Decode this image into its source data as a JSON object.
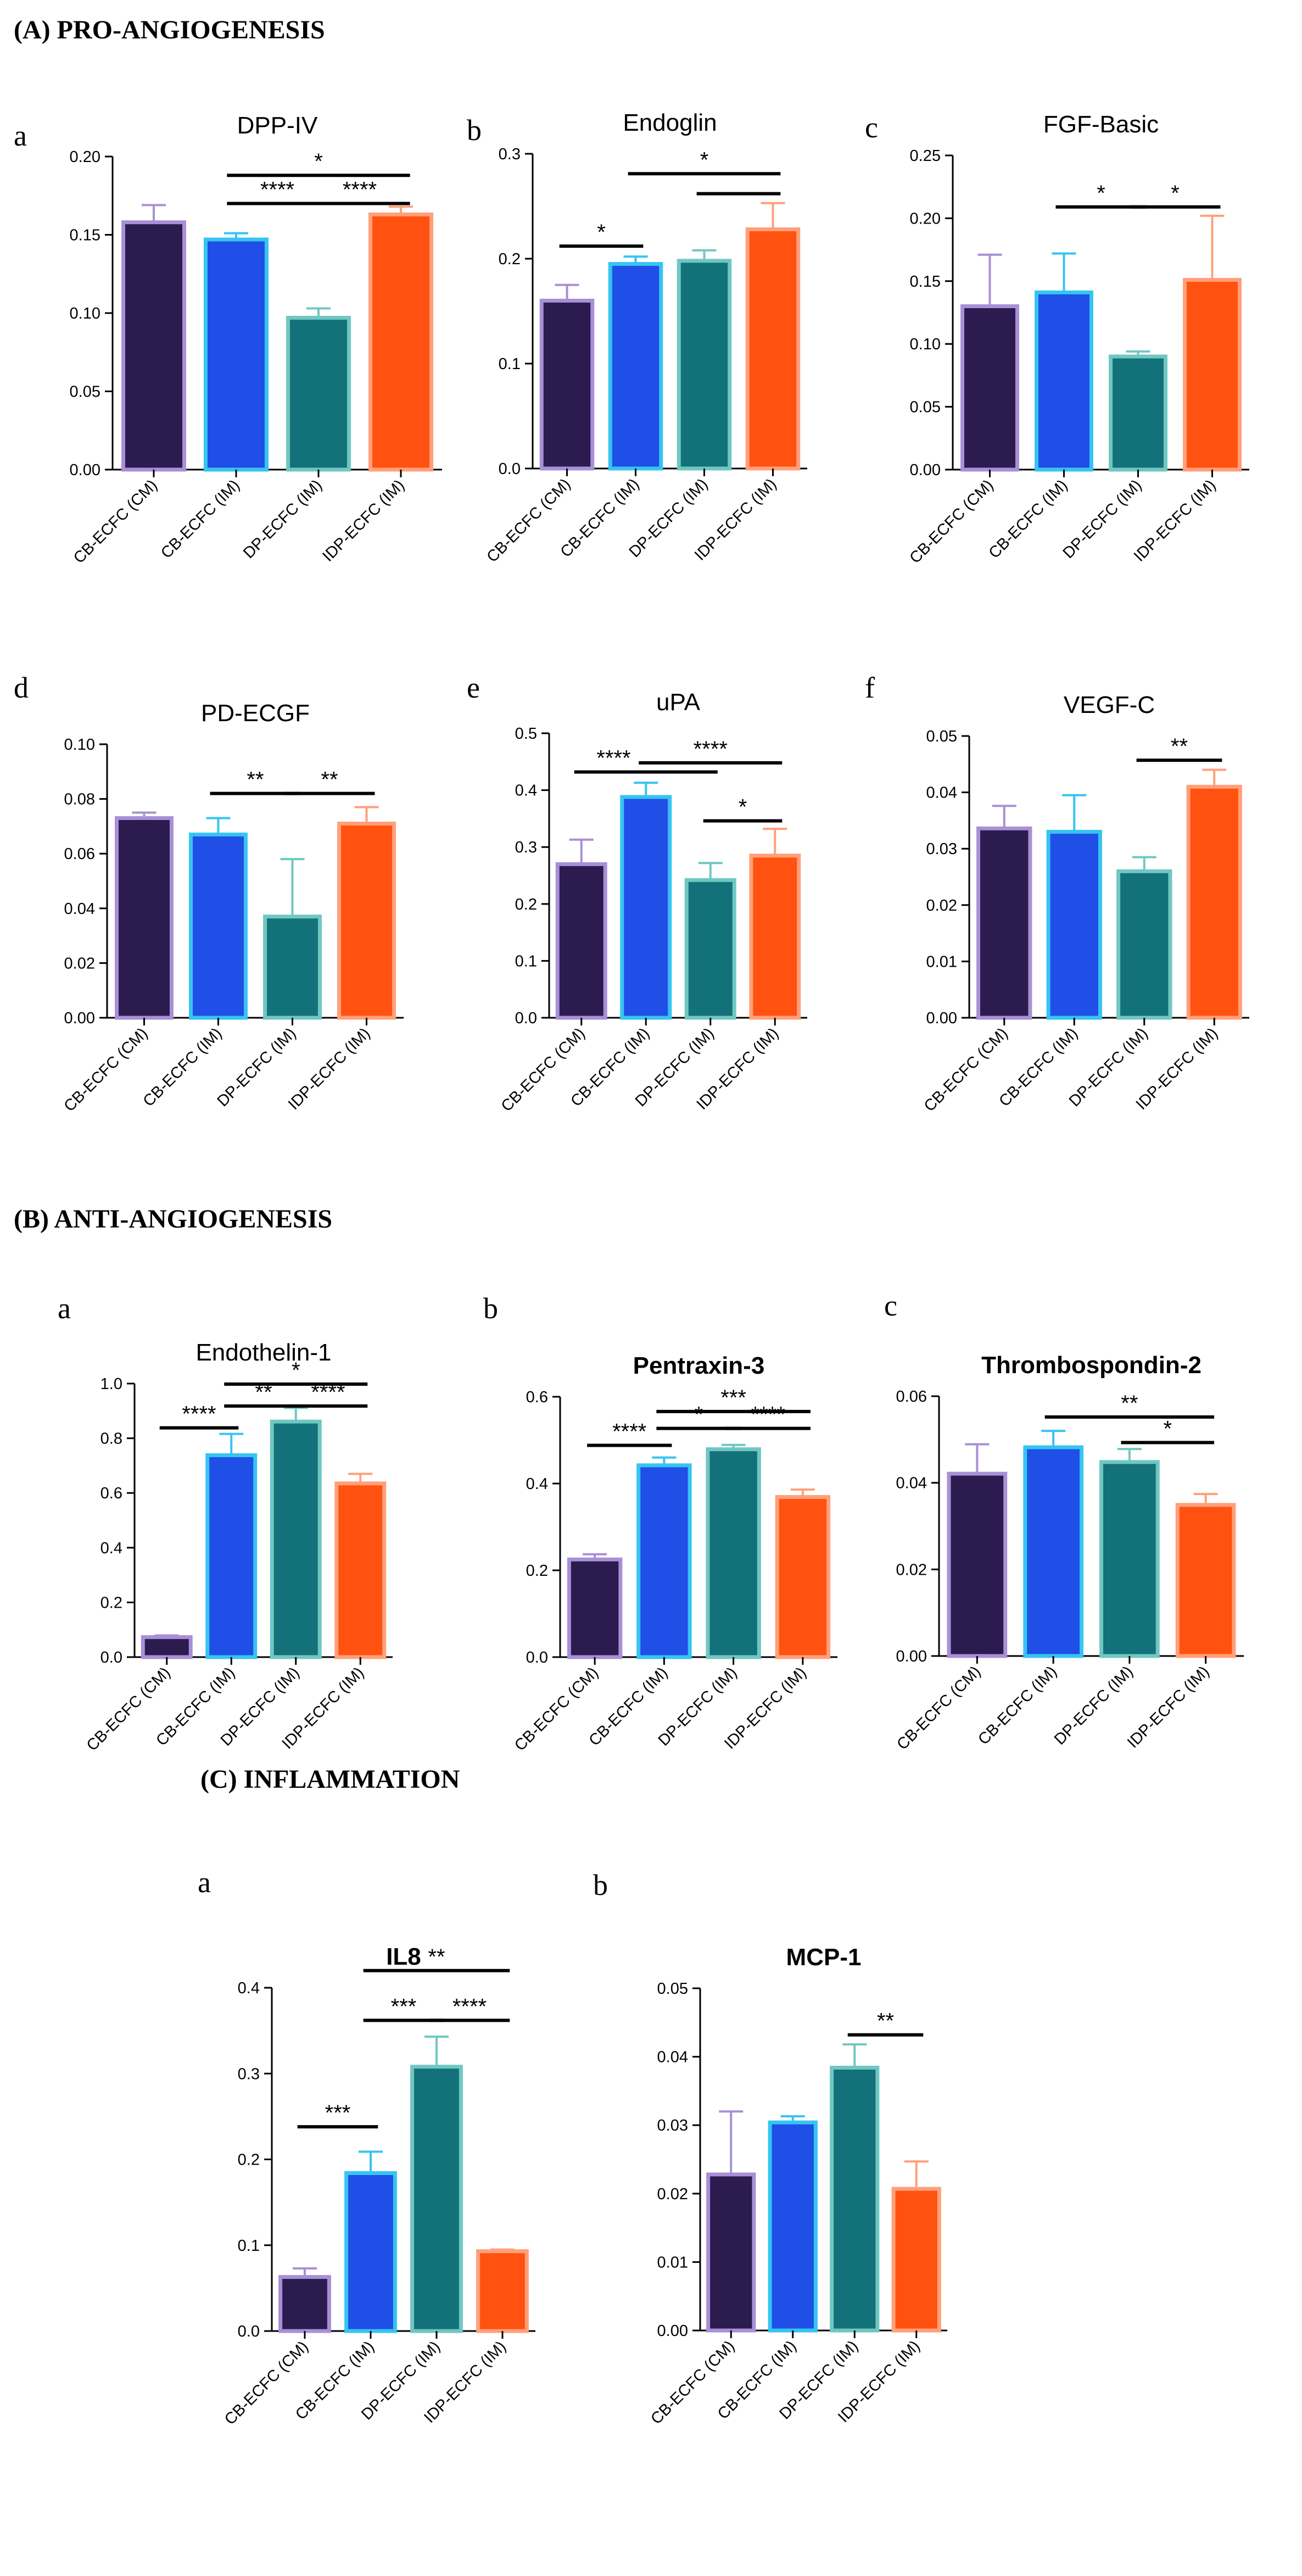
{
  "sections": [
    {
      "label": "(A) PRO-ANGIOGENESIS"
    },
    {
      "label": "(B) ANTI-ANGIOGENESIS"
    },
    {
      "label": "(C) INFLAMMATION"
    }
  ],
  "colors": {
    "CB-ECFC (CM)": {
      "fill": "#2b1b4f",
      "edge": "#a88fd6"
    },
    "CB-ECFC (IM)": {
      "fill": "#1f4fe6",
      "edge": "#36c4f2"
    },
    "DP-ECFC (IM)": {
      "fill": "#13717a",
      "edge": "#70c7c2"
    },
    "IDP-ECFC (IM)": {
      "fill": "#ff5210",
      "edge": "#ffa07a"
    }
  },
  "chart_data": [
    {
      "id": "A-a",
      "type": "bar",
      "panel": "a",
      "title": "DPP-IV",
      "bold_title": false,
      "categories": [
        "CB-ECFC (CM)",
        "CB-ECFC (IM)",
        "DP-ECFC (IM)",
        "IDP-ECFC (IM)"
      ],
      "values": [
        0.158,
        0.147,
        0.097,
        0.163
      ],
      "errors": [
        0.011,
        0.004,
        0.006,
        0.005
      ],
      "ylim": [
        0,
        0.2
      ],
      "yticks": [
        "0.00",
        "0.05",
        "0.10",
        "0.15",
        "0.20"
      ],
      "significance": [
        {
          "from": 1,
          "to": 2,
          "level": 0.17,
          "label": "****"
        },
        {
          "from": 2,
          "to": 3,
          "level": 0.17,
          "label": "****"
        },
        {
          "from": 1,
          "to": 3,
          "level": 0.188,
          "label": "*"
        }
      ]
    },
    {
      "id": "A-b",
      "type": "bar",
      "panel": "b",
      "title": "Endoglin",
      "bold_title": false,
      "categories": [
        "CB-ECFC (CM)",
        "CB-ECFC (IM)",
        "DP-ECFC (IM)",
        "IDP-ECFC (IM)"
      ],
      "values": [
        0.16,
        0.195,
        0.198,
        0.228
      ],
      "errors": [
        0.015,
        0.007,
        0.01,
        0.025
      ],
      "ylim": [
        0,
        0.3
      ],
      "yticks": [
        "0.0",
        "0.1",
        "0.2",
        "0.3"
      ],
      "significance": [
        {
          "from": 0,
          "to": 1,
          "level": 0.212,
          "label": "*"
        },
        {
          "from": 2,
          "to": 3,
          "level": 0.262,
          "label": ""
        },
        {
          "from": 1,
          "to": 3,
          "level": 0.281,
          "label": "*"
        }
      ]
    },
    {
      "id": "A-c",
      "type": "bar",
      "panel": "c",
      "title": "FGF-Basic",
      "bold_title": false,
      "categories": [
        "CB-ECFC (CM)",
        "CB-ECFC (IM)",
        "DP-ECFC (IM)",
        "IDP-ECFC (IM)"
      ],
      "values": [
        0.13,
        0.141,
        0.09,
        0.151
      ],
      "errors": [
        0.041,
        0.031,
        0.004,
        0.051
      ],
      "ylim": [
        0,
        0.25
      ],
      "yticks": [
        "0.00",
        "0.05",
        "0.10",
        "0.15",
        "0.20",
        "0.25"
      ],
      "significance": [
        {
          "from": 1,
          "to": 2,
          "level": 0.209,
          "label": "*"
        },
        {
          "from": 2,
          "to": 3,
          "level": 0.209,
          "label": "*"
        }
      ]
    },
    {
      "id": "A-d",
      "type": "bar",
      "panel": "d",
      "title": "PD-ECGF",
      "bold_title": false,
      "categories": [
        "CB-ECFC (CM)",
        "CB-ECFC (IM)",
        "DP-ECFC (IM)",
        "IDP-ECFC (IM)"
      ],
      "values": [
        0.073,
        0.067,
        0.037,
        0.071
      ],
      "errors": [
        0.002,
        0.006,
        0.021,
        0.006
      ],
      "ylim": [
        0,
        0.1
      ],
      "yticks": [
        "0.00",
        "0.02",
        "0.04",
        "0.06",
        "0.08",
        "0.10"
      ],
      "significance": [
        {
          "from": 1,
          "to": 2,
          "level": 0.082,
          "label": "**"
        },
        {
          "from": 2,
          "to": 3,
          "level": 0.082,
          "label": "**"
        }
      ]
    },
    {
      "id": "A-e",
      "type": "bar",
      "panel": "e",
      "title": "uPA",
      "bold_title": false,
      "categories": [
        "CB-ECFC (CM)",
        "CB-ECFC (IM)",
        "DP-ECFC (IM)",
        "IDP-ECFC (IM)"
      ],
      "values": [
        0.27,
        0.388,
        0.242,
        0.285
      ],
      "errors": [
        0.043,
        0.025,
        0.03,
        0.047
      ],
      "ylim": [
        0,
        0.5
      ],
      "yticks": [
        "0.0",
        "0.1",
        "0.2",
        "0.3",
        "0.4",
        "0.5"
      ],
      "significance": [
        {
          "from": 0,
          "to": 1,
          "level": 0.432,
          "label": "****"
        },
        {
          "from": 1,
          "to": 2,
          "level": 0.432,
          "label": ""
        },
        {
          "from": 1,
          "to": 3,
          "level": 0.448,
          "label": "****"
        },
        {
          "from": 2,
          "to": 3,
          "level": 0.346,
          "label": "*"
        }
      ]
    },
    {
      "id": "A-f",
      "type": "bar",
      "panel": "f",
      "title": "VEGF-C",
      "bold_title": false,
      "categories": [
        "CB-ECFC (CM)",
        "CB-ECFC (IM)",
        "DP-ECFC (IM)",
        "IDP-ECFC (IM)"
      ],
      "values": [
        0.0336,
        0.033,
        0.026,
        0.041
      ],
      "errors": [
        0.004,
        0.0065,
        0.0025,
        0.003
      ],
      "ylim": [
        0,
        0.05
      ],
      "yticks": [
        "0.00",
        "0.01",
        "0.02",
        "0.03",
        "0.04",
        "0.05"
      ],
      "significance": [
        {
          "from": 2,
          "to": 3,
          "level": 0.0457,
          "label": "**"
        }
      ]
    },
    {
      "id": "B-a",
      "type": "bar",
      "panel": "a",
      "title": "Endothelin-1",
      "bold_title": false,
      "categories": [
        "CB-ECFC (CM)",
        "CB-ECFC (IM)",
        "DP-ECFC (IM)",
        "IDP-ECFC (IM)"
      ],
      "values": [
        0.073,
        0.738,
        0.861,
        0.635
      ],
      "errors": [
        0.006,
        0.078,
        0.05,
        0.035
      ],
      "ylim": [
        0,
        1.0
      ],
      "yticks": [
        "0.0",
        "0.2",
        "0.4",
        "0.6",
        "0.8",
        "1.0"
      ],
      "significance": [
        {
          "from": 0,
          "to": 1,
          "level": 0.838,
          "label": "****"
        },
        {
          "from": 1,
          "to": 2,
          "level": 0.918,
          "label": "**"
        },
        {
          "from": 2,
          "to": 3,
          "level": 0.918,
          "label": "****"
        },
        {
          "from": 1,
          "to": 3,
          "level": 0.998,
          "label": "*"
        }
      ]
    },
    {
      "id": "B-b",
      "type": "bar",
      "panel": "b",
      "title": "Pentraxin-3",
      "bold_title": true,
      "categories": [
        "CB-ECFC (CM)",
        "CB-ECFC (IM)",
        "DP-ECFC (IM)",
        "IDP-ECFC (IM)"
      ],
      "values": [
        0.225,
        0.442,
        0.479,
        0.369
      ],
      "errors": [
        0.012,
        0.018,
        0.01,
        0.017
      ],
      "ylim": [
        0,
        0.6
      ],
      "yticks": [
        "0.0",
        "0.2",
        "0.4",
        "0.6"
      ],
      "significance": [
        {
          "from": 0,
          "to": 1,
          "level": 0.488,
          "label": "****"
        },
        {
          "from": 1,
          "to": 2,
          "level": 0.527,
          "label": "*"
        },
        {
          "from": 2,
          "to": 3,
          "level": 0.527,
          "label": "****"
        },
        {
          "from": 1,
          "to": 3,
          "level": 0.566,
          "label": "***"
        }
      ]
    },
    {
      "id": "B-c",
      "type": "bar",
      "panel": "c",
      "title": "Thrombospondin-2",
      "bold_title": true,
      "categories": [
        "CB-ECFC (CM)",
        "CB-ECFC (IM)",
        "DP-ECFC (IM)",
        "IDP-ECFC (IM)"
      ],
      "values": [
        0.0421,
        0.0482,
        0.0448,
        0.0349
      ],
      "errors": [
        0.0068,
        0.0038,
        0.003,
        0.0025
      ],
      "ylim": [
        0,
        0.06
      ],
      "yticks": [
        "0.00",
        "0.02",
        "0.04",
        "0.06"
      ],
      "significance": [
        {
          "from": 2,
          "to": 3,
          "level": 0.0493,
          "label": "*"
        },
        {
          "from": 1,
          "to": 3,
          "level": 0.0552,
          "label": "**"
        }
      ]
    },
    {
      "id": "C-a",
      "type": "bar",
      "panel": "a",
      "title": "IL8",
      "bold_title": true,
      "categories": [
        "CB-ECFC (CM)",
        "CB-ECFC (IM)",
        "DP-ECFC (IM)",
        "IDP-ECFC (IM)"
      ],
      "values": [
        0.063,
        0.184,
        0.308,
        0.093
      ],
      "errors": [
        0.01,
        0.025,
        0.035,
        0.002
      ],
      "ylim": [
        0,
        0.4
      ],
      "yticks": [
        "0.0",
        "0.1",
        "0.2",
        "0.3",
        "0.4"
      ],
      "significance": [
        {
          "from": 0,
          "to": 1,
          "level": 0.238,
          "label": "***"
        },
        {
          "from": 1,
          "to": 2,
          "level": 0.362,
          "label": "***"
        },
        {
          "from": 2,
          "to": 3,
          "level": 0.362,
          "label": "****"
        },
        {
          "from": 1,
          "to": 3,
          "level": 0.42,
          "label": "**"
        }
      ]
    },
    {
      "id": "C-b",
      "type": "bar",
      "panel": "b",
      "title": "MCP-1",
      "bold_title": true,
      "categories": [
        "CB-ECFC (CM)",
        "CB-ECFC (IM)",
        "DP-ECFC (IM)",
        "IDP-ECFC (IM)"
      ],
      "values": [
        0.0228,
        0.0304,
        0.0384,
        0.0207
      ],
      "errors": [
        0.0092,
        0.0009,
        0.0034,
        0.004
      ],
      "ylim": [
        0,
        0.05
      ],
      "yticks": [
        "0.00",
        "0.01",
        "0.02",
        "0.03",
        "0.04",
        "0.05"
      ],
      "significance": [
        {
          "from": 2,
          "to": 3,
          "level": 0.0432,
          "label": "**"
        }
      ]
    }
  ]
}
